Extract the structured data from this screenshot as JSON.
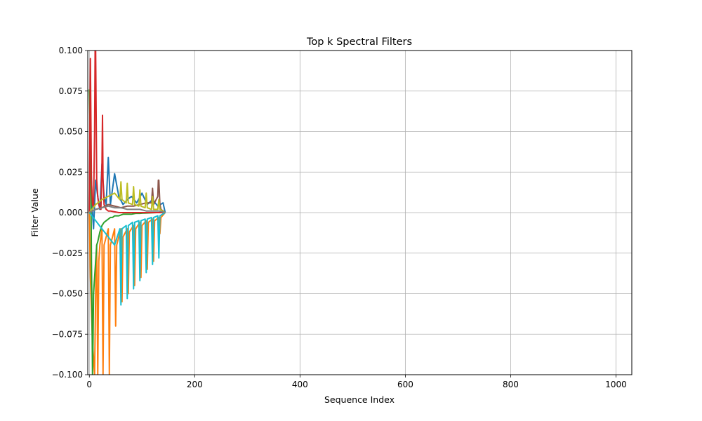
{
  "chart_data": {
    "type": "line",
    "title": "Top k Spectral Filters",
    "xlabel": "Sequence Index",
    "ylabel": "Filter Value",
    "xlim": [
      -3,
      1030
    ],
    "ylim": [
      -0.1,
      0.1
    ],
    "grid": true,
    "legend": "none",
    "xticks": [
      0,
      200,
      400,
      600,
      800,
      1000
    ],
    "yticks": [
      -0.1,
      -0.075,
      -0.05,
      -0.025,
      0.0,
      0.025,
      0.05,
      0.075,
      0.1
    ],
    "xtick_labels": [
      "0",
      "200",
      "400",
      "600",
      "800",
      "1000"
    ],
    "ytick_labels": [
      "−0.100",
      "−0.075",
      "−0.050",
      "−0.025",
      "0.000",
      "0.025",
      "0.050",
      "0.075",
      "0.100"
    ],
    "series": [
      {
        "color": "#1f77b4",
        "x": [
          0,
          1,
          2,
          3,
          4,
          5,
          6,
          8,
          10,
          12,
          14,
          16,
          18,
          20,
          24,
          28,
          32,
          36,
          40,
          48,
          56,
          64,
          72,
          80,
          90,
          100,
          110,
          120,
          130,
          140,
          144
        ],
        "values": [
          0,
          0.04,
          0.035,
          0.03,
          0.02,
          0.01,
          0.0,
          -0.01,
          0.005,
          0.02,
          0.015,
          0.01,
          0.005,
          0.002,
          0.03,
          0.01,
          0.005,
          0.034,
          0.005,
          0.024,
          0.01,
          0.005,
          0.008,
          0.01,
          0.006,
          0.012,
          0.005,
          0.008,
          0.004,
          0.006,
          0.0
        ]
      },
      {
        "color": "#ff7f0e",
        "x": [
          0,
          2,
          4,
          6,
          8,
          10,
          12,
          14,
          16,
          18,
          20,
          24,
          26,
          28,
          36,
          38,
          40,
          48,
          50,
          52,
          60,
          62,
          64,
          72,
          74,
          76,
          84,
          86,
          88,
          96,
          98,
          100,
          108,
          110,
          112,
          120,
          122,
          124,
          132,
          134,
          136,
          144
        ],
        "values": [
          0,
          -0.04,
          -0.06,
          -0.08,
          -0.09,
          -0.1,
          -0.05,
          -0.02,
          -0.1,
          -0.03,
          -0.02,
          -0.01,
          -0.1,
          -0.02,
          -0.01,
          -0.1,
          -0.02,
          -0.01,
          -0.07,
          -0.02,
          -0.01,
          -0.055,
          -0.015,
          -0.01,
          -0.05,
          -0.012,
          -0.008,
          -0.045,
          -0.01,
          -0.006,
          -0.04,
          -0.008,
          -0.005,
          -0.035,
          -0.006,
          -0.004,
          -0.03,
          -0.005,
          -0.003,
          -0.013,
          -0.003,
          0.0
        ]
      },
      {
        "color": "#2ca02c",
        "x": [
          0,
          1,
          2,
          3,
          4,
          5,
          6,
          7,
          8,
          10,
          12,
          14,
          16,
          18,
          20,
          22,
          24,
          28,
          32,
          36,
          40,
          44,
          48,
          56,
          64,
          72,
          80,
          88,
          96,
          104,
          112,
          120,
          128,
          136,
          144
        ],
        "values": [
          0.076,
          0.06,
          0.04,
          0.02,
          -0.03,
          -0.06,
          -0.1,
          -0.08,
          -0.05,
          -0.04,
          -0.03,
          -0.02,
          -0.018,
          -0.015,
          -0.012,
          -0.01,
          -0.008,
          -0.006,
          -0.005,
          -0.004,
          -0.003,
          -0.003,
          -0.002,
          -0.002,
          -0.001,
          -0.001,
          -0.001,
          -0.0005,
          -0.0005,
          -0.0003,
          -0.0002,
          -0.0001,
          0,
          0,
          0
        ]
      },
      {
        "color": "#d62728",
        "x": [
          0,
          2,
          4,
          6,
          8,
          10,
          11,
          12,
          13,
          14,
          16,
          18,
          20,
          22,
          24,
          25,
          26,
          28,
          32,
          36,
          40,
          48,
          56,
          64,
          72,
          80,
          96,
          112,
          128,
          144
        ],
        "values": [
          0.0,
          0.095,
          0.02,
          0.005,
          0.003,
          0.05,
          0.1,
          0.1,
          0.06,
          0.02,
          0.01,
          0.005,
          0.003,
          0.002,
          0.03,
          0.06,
          0.02,
          0.005,
          0.002,
          0.001,
          0.001,
          0.0005,
          0.0,
          0.0,
          0.0,
          0.0,
          0.0,
          0.0,
          0.0,
          0.0
        ]
      },
      {
        "color": "#8c564b",
        "x": [
          0,
          12,
          24,
          36,
          48,
          60,
          72,
          84,
          96,
          108,
          118,
          120,
          122,
          130,
          131,
          132,
          134,
          136,
          144
        ],
        "values": [
          0,
          0.002,
          0.003,
          0.005,
          0.004,
          0.003,
          0.004,
          0.004,
          0.005,
          0.006,
          0.006,
          0.015,
          0.005,
          0.01,
          0.02,
          0.02,
          0.005,
          0.002,
          0.0
        ]
      },
      {
        "color": "#bcbd22",
        "x": [
          0,
          12,
          24,
          36,
          48,
          58,
          60,
          62,
          70,
          72,
          74,
          82,
          84,
          86,
          94,
          96,
          98,
          106,
          108,
          110,
          118,
          120,
          122,
          130,
          132,
          134,
          144
        ],
        "values": [
          0,
          0.005,
          0.008,
          0.01,
          0.012,
          0.008,
          0.019,
          0.008,
          0.006,
          0.018,
          0.006,
          0.005,
          0.016,
          0.005,
          0.004,
          0.014,
          0.004,
          0.003,
          0.012,
          0.003,
          0.002,
          0.01,
          0.002,
          0.002,
          0.008,
          0.002,
          0.0
        ]
      },
      {
        "color": "#17becf",
        "x": [
          0,
          12,
          24,
          36,
          48,
          58,
          60,
          62,
          70,
          72,
          74,
          82,
          84,
          86,
          94,
          96,
          98,
          106,
          108,
          110,
          118,
          120,
          122,
          130,
          132,
          134,
          144
        ],
        "values": [
          0,
          -0.005,
          -0.01,
          -0.015,
          -0.02,
          -0.01,
          -0.057,
          -0.01,
          -0.008,
          -0.053,
          -0.008,
          -0.006,
          -0.047,
          -0.006,
          -0.005,
          -0.042,
          -0.005,
          -0.004,
          -0.037,
          -0.004,
          -0.003,
          -0.032,
          -0.003,
          -0.002,
          -0.028,
          -0.002,
          0.0
        ]
      },
      {
        "color": "#7f7f7f",
        "x": [
          0,
          12,
          24,
          36,
          48,
          60,
          72,
          84,
          96,
          108,
          120,
          132,
          144
        ],
        "values": [
          0,
          0.002,
          0.003,
          0.004,
          0.003,
          0.003,
          0.002,
          0.002,
          0.002,
          0.001,
          0.001,
          0.001,
          0.0
        ]
      }
    ]
  }
}
